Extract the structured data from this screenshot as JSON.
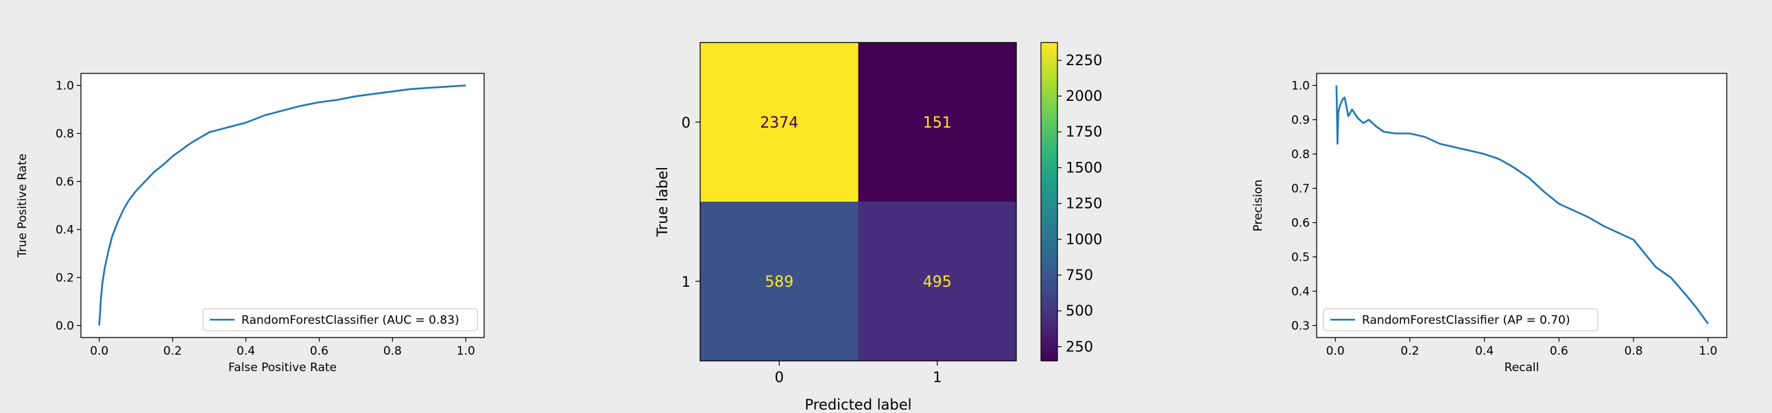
{
  "chart_data": [
    {
      "type": "line",
      "title": "",
      "xlabel": "False Positive Rate",
      "ylabel": "True Positive Rate",
      "xlim": [
        -0.05,
        1.05
      ],
      "ylim": [
        -0.05,
        1.05
      ],
      "xticks": [
        0.0,
        0.2,
        0.4,
        0.6,
        0.8,
        1.0
      ],
      "yticks": [
        0.0,
        0.2,
        0.4,
        0.6,
        0.8,
        1.0
      ],
      "tick_labels": [
        "0.0",
        "0.2",
        "0.4",
        "0.6",
        "0.8",
        "1.0"
      ],
      "grid": false,
      "legend_placement": "lower-right",
      "series": [
        {
          "name": "RandomForestClassifier (AUC = 0.83)",
          "x": [
            0.0,
            0.004,
            0.008,
            0.015,
            0.025,
            0.035,
            0.05,
            0.065,
            0.08,
            0.1,
            0.125,
            0.15,
            0.175,
            0.2,
            0.25,
            0.3,
            0.35,
            0.4,
            0.45,
            0.5,
            0.55,
            0.6,
            0.65,
            0.7,
            0.75,
            0.8,
            0.85,
            0.9,
            0.95,
            1.0
          ],
          "y": [
            0.0,
            0.1,
            0.17,
            0.24,
            0.31,
            0.37,
            0.43,
            0.48,
            0.52,
            0.56,
            0.6,
            0.64,
            0.67,
            0.705,
            0.76,
            0.805,
            0.825,
            0.845,
            0.875,
            0.895,
            0.915,
            0.93,
            0.94,
            0.955,
            0.965,
            0.975,
            0.985,
            0.99,
            0.995,
            1.0
          ]
        }
      ],
      "color": "#1f77b4"
    },
    {
      "type": "heatmap",
      "title": "",
      "xlabel": "Predicted label",
      "ylabel": "True label",
      "x_categories": [
        "0",
        "1"
      ],
      "y_categories": [
        "0",
        "1"
      ],
      "values": [
        [
          2374,
          151
        ],
        [
          589,
          495
        ]
      ],
      "colorbar": {
        "colormap": "viridis",
        "vmin": 151,
        "vmax": 2374,
        "ticks": [
          250,
          500,
          750,
          1000,
          1250,
          1500,
          1750,
          2000,
          2250
        ]
      },
      "cell_colors": [
        [
          "#fde725",
          "#440154"
        ],
        [
          "#3b528b",
          "#472f7d"
        ]
      ],
      "annotation_colors": [
        [
          "#440154",
          "#fde725"
        ],
        [
          "#fde725",
          "#fde725"
        ]
      ]
    },
    {
      "type": "line",
      "title": "",
      "xlabel": "Recall",
      "ylabel": "Precision",
      "xlim": [
        -0.05,
        1.05
      ],
      "ylim": [
        0.265,
        1.035
      ],
      "xticks": [
        0.0,
        0.2,
        0.4,
        0.6,
        0.8,
        1.0
      ],
      "yticks": [
        0.3,
        0.4,
        0.5,
        0.6,
        0.7,
        0.8,
        0.9,
        1.0
      ],
      "xtick_labels": [
        "0.0",
        "0.2",
        "0.4",
        "0.6",
        "0.8",
        "1.0"
      ],
      "ytick_labels": [
        "0.3",
        "0.4",
        "0.5",
        "0.6",
        "0.7",
        "0.8",
        "0.9",
        "1.0"
      ],
      "grid": false,
      "legend_placement": "lower-left",
      "series": [
        {
          "name": "RandomForestClassifier (AP = 0.70)",
          "x": [
            0.003,
            0.004,
            0.006,
            0.008,
            0.012,
            0.02,
            0.025,
            0.035,
            0.045,
            0.06,
            0.075,
            0.09,
            0.11,
            0.13,
            0.16,
            0.2,
            0.24,
            0.28,
            0.32,
            0.36,
            0.4,
            0.44,
            0.48,
            0.52,
            0.56,
            0.6,
            0.64,
            0.68,
            0.72,
            0.76,
            0.8,
            0.83,
            0.86,
            0.9,
            0.94,
            0.97,
            0.99,
            1.0
          ],
          "y": [
            1.0,
            0.95,
            0.83,
            0.92,
            0.94,
            0.96,
            0.965,
            0.91,
            0.93,
            0.905,
            0.89,
            0.9,
            0.88,
            0.865,
            0.86,
            0.86,
            0.85,
            0.83,
            0.82,
            0.81,
            0.8,
            0.785,
            0.76,
            0.73,
            0.69,
            0.655,
            0.635,
            0.615,
            0.59,
            0.57,
            0.55,
            0.51,
            0.47,
            0.44,
            0.39,
            0.35,
            0.32,
            0.305
          ]
        }
      ],
      "color": "#1f77b4"
    }
  ]
}
